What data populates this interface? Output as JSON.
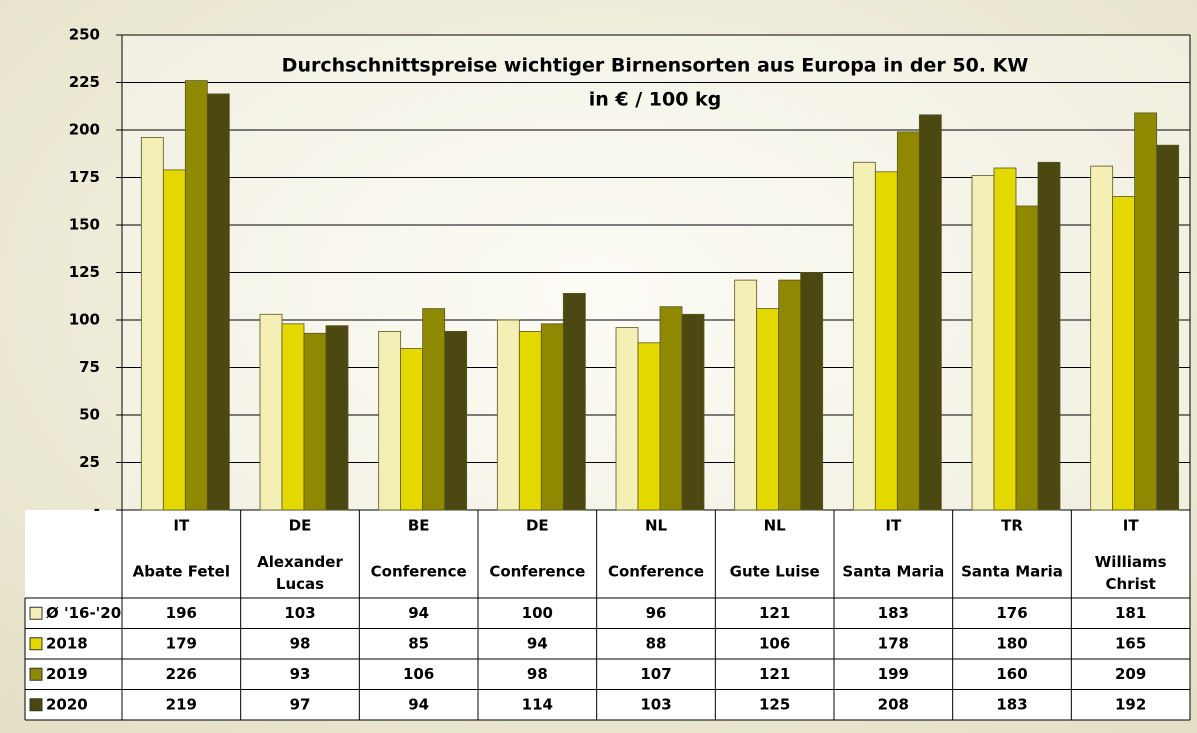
{
  "chart_data": {
    "type": "bar",
    "title": "Durchschnittspreise wichtiger Birnensorten aus Europa in der 50. KW",
    "subtitle": "in € / 100 kg",
    "categories": [
      {
        "country": "IT",
        "variety": "Abate Fetel"
      },
      {
        "country": "DE",
        "variety": "Alexander Lucas"
      },
      {
        "country": "BE",
        "variety": "Conference"
      },
      {
        "country": "DE",
        "variety": "Conference"
      },
      {
        "country": "NL",
        "variety": "Conference"
      },
      {
        "country": "NL",
        "variety": "Gute Luise"
      },
      {
        "country": "IT",
        "variety": "Santa Maria"
      },
      {
        "country": "TR",
        "variety": "Santa Maria"
      },
      {
        "country": "IT",
        "variety": "Williams Christ"
      }
    ],
    "series": [
      {
        "name": "Ø '16-'20",
        "color": "#f4efb4",
        "values": [
          196,
          103,
          94,
          100,
          96,
          121,
          183,
          176,
          181
        ]
      },
      {
        "name": "2018",
        "color": "#e3d900",
        "values": [
          179,
          98,
          85,
          94,
          88,
          106,
          178,
          180,
          165
        ]
      },
      {
        "name": "2019",
        "color": "#8e8900",
        "values": [
          226,
          93,
          106,
          98,
          107,
          121,
          199,
          160,
          209
        ]
      },
      {
        "name": "2020",
        "color": "#4b4812",
        "values": [
          219,
          97,
          94,
          114,
          103,
          125,
          208,
          183,
          192
        ]
      }
    ],
    "ylim": [
      0,
      250
    ],
    "yticks": [
      {
        "value": 0,
        "label": "-"
      },
      25,
      50,
      75,
      100,
      125,
      150,
      175,
      200,
      225,
      250
    ],
    "grid": true
  }
}
